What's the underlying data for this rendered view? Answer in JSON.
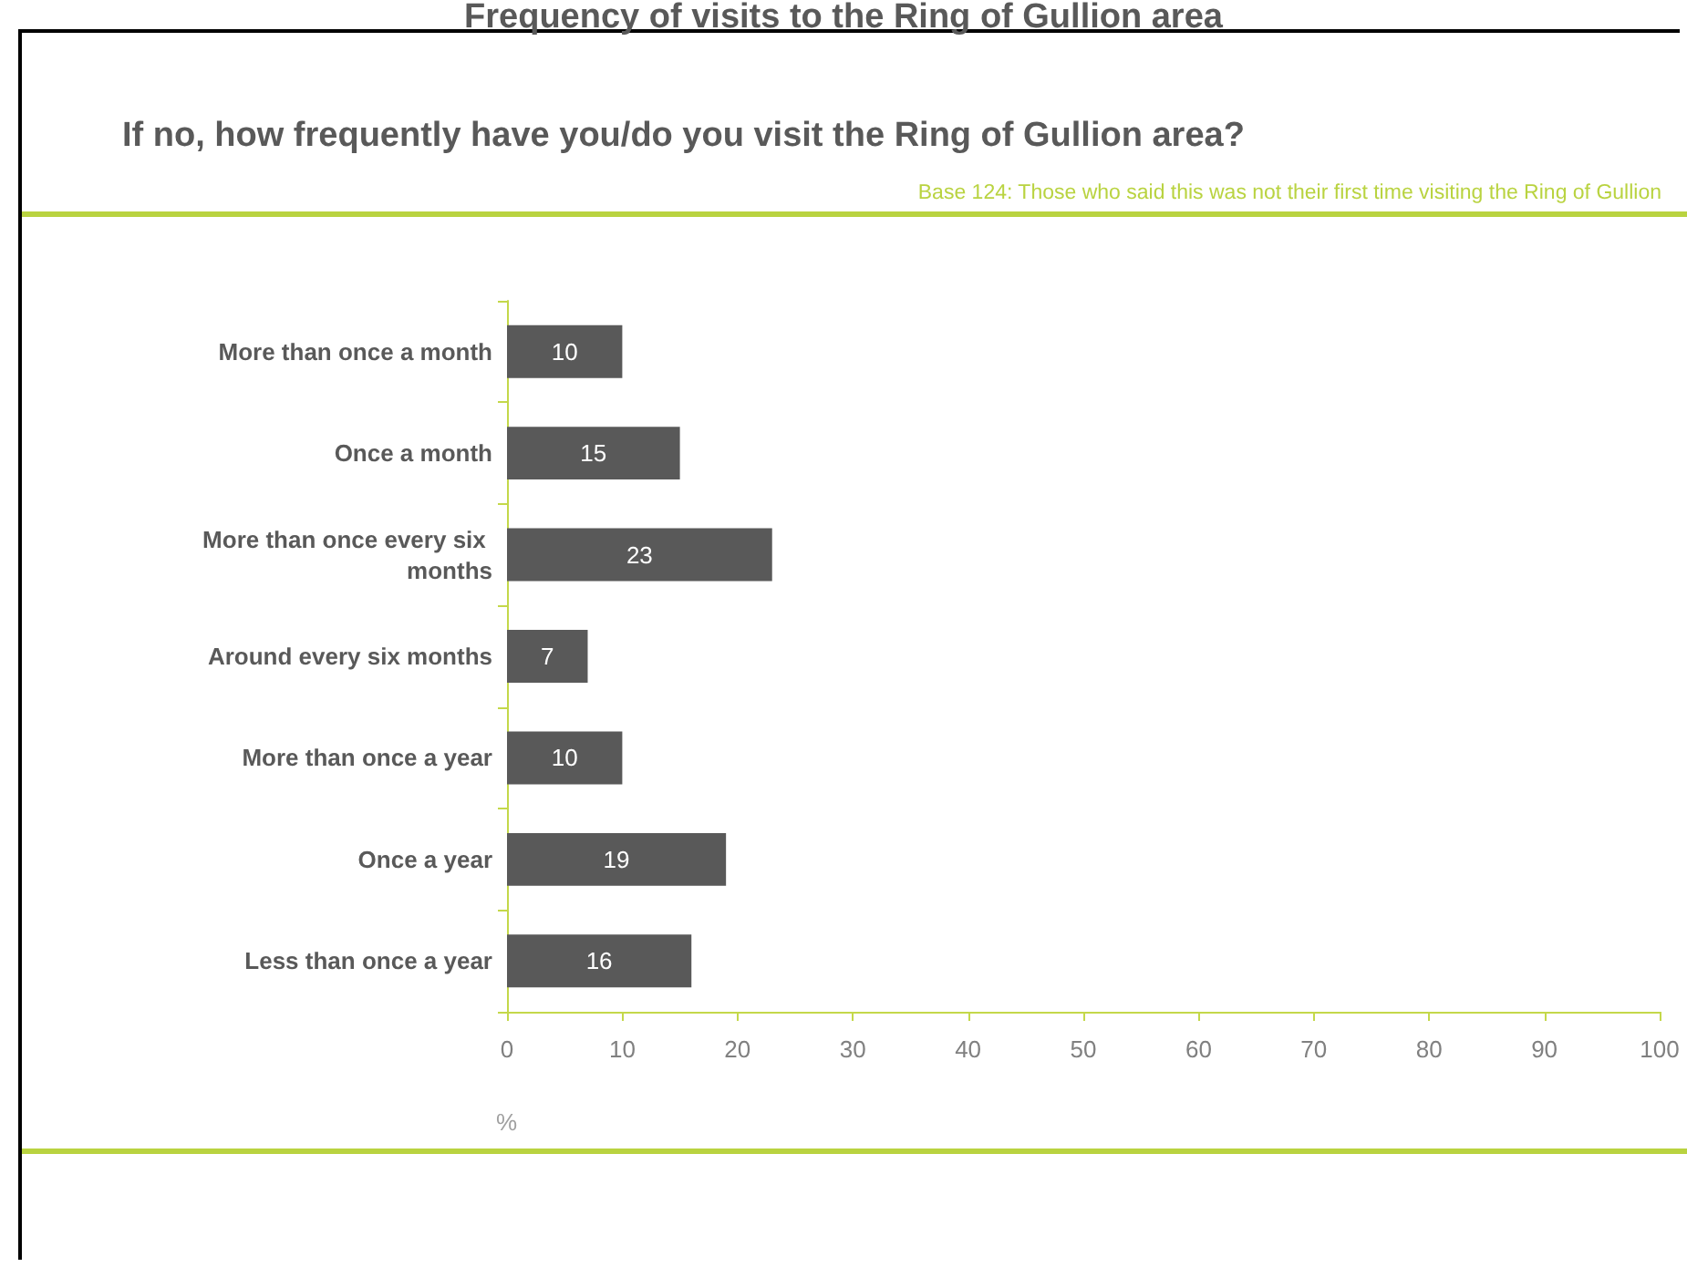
{
  "chart_data": {
    "type": "bar",
    "orientation": "horizontal",
    "title": "Frequency of visits to the Ring of Gullion area",
    "subtitle": "If no, how frequently have you/do you visit the Ring of Gullion area?",
    "annotations": [
      "Base 124: Those who said this was not their first time visiting the Ring of Gullion"
    ],
    "categories": [
      "More than once a month",
      "Once a month",
      "More than once every six months",
      "Around every six months",
      "More than once a year",
      "Once a year",
      "Less than once a year"
    ],
    "values": [
      10,
      15,
      23,
      7,
      10,
      19,
      16
    ],
    "color": "#595959",
    "xlabel": "%",
    "xlim": [
      0,
      100
    ],
    "xticks": [
      0,
      10,
      20,
      30,
      40,
      50,
      60,
      70,
      80,
      90,
      100
    ],
    "data_labels": true
  }
}
